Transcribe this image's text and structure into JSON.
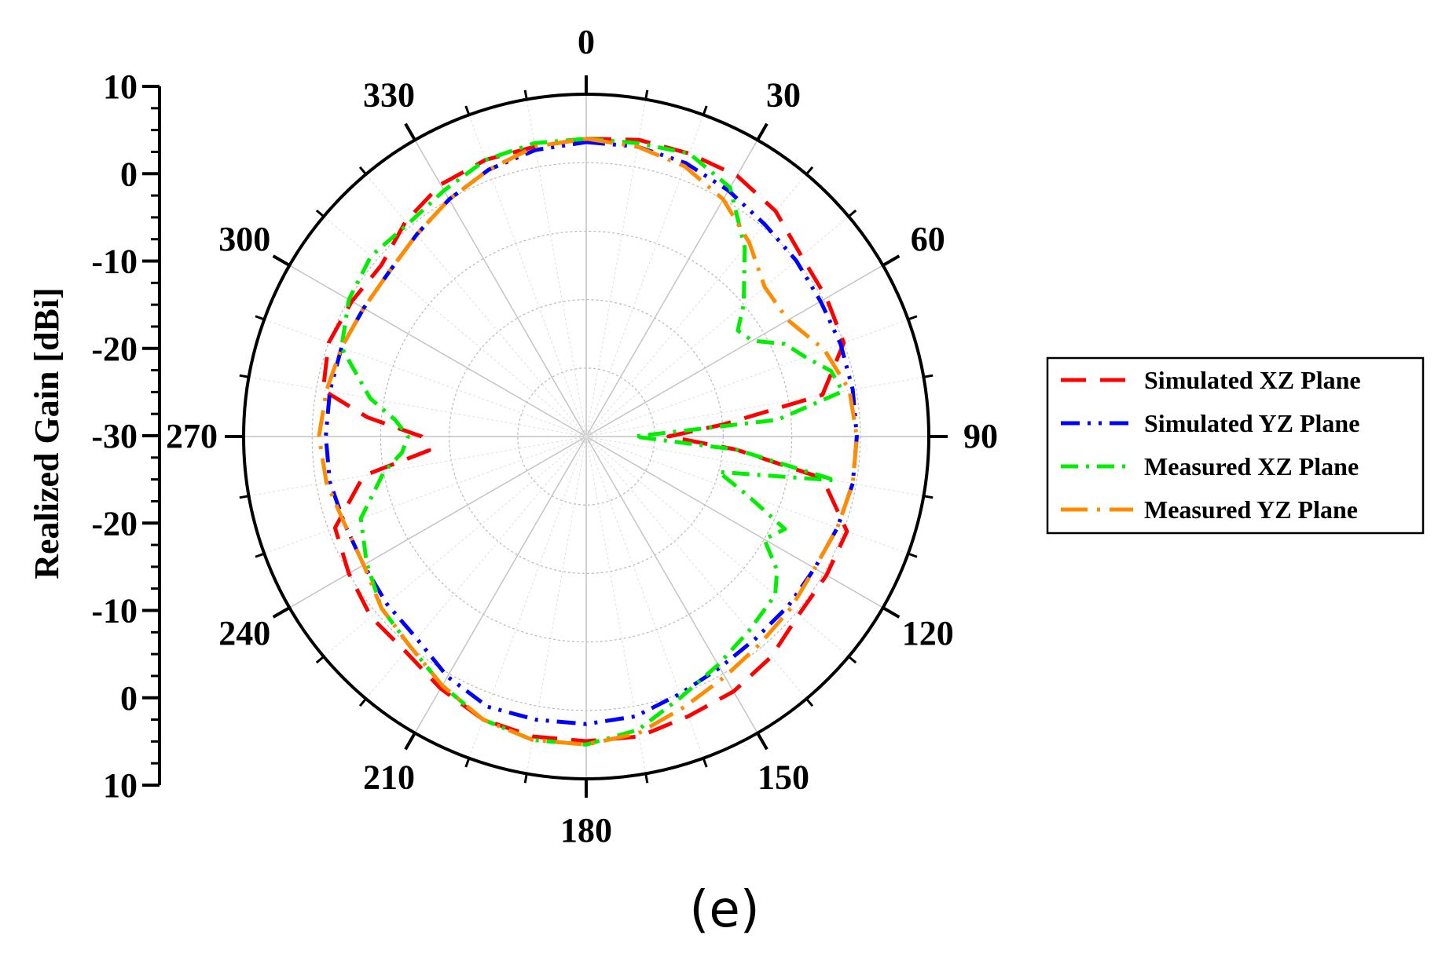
{
  "chart_data": {
    "type": "polar-line",
    "ylabel": "Realized Gain [dBi]",
    "radial_range": [
      -40,
      10
    ],
    "radial_ticks": [
      "10",
      "0",
      "-10",
      "-20",
      "-30",
      "-20",
      "-10",
      "0",
      "10"
    ],
    "angle_labels": [
      "0",
      "30",
      "60",
      "90",
      "120",
      "150",
      "180",
      "210",
      "240",
      "270",
      "300",
      "330"
    ],
    "grid": true,
    "legend_position": "right",
    "caption": "(e)",
    "series": [
      {
        "name": "Simulated XZ Plane",
        "color": "#ff0000",
        "angles": [
          0,
          10,
          20,
          30,
          40,
          50,
          60,
          70,
          80,
          85,
          90,
          95,
          100,
          110,
          120,
          130,
          140,
          150,
          160,
          170,
          180,
          190,
          200,
          210,
          220,
          230,
          240,
          250,
          260,
          265,
          270,
          275,
          280,
          290,
          300,
          310,
          320,
          330,
          340,
          350,
          360
        ],
        "gains": [
          3.5,
          4.0,
          4.0,
          4.0,
          3.0,
          1.0,
          0.5,
          0.0,
          -5.0,
          -20.0,
          -28.0,
          -18.0,
          -5.0,
          0.5,
          0.5,
          0.5,
          2.0,
          3.0,
          3.5,
          4.5,
          4.5,
          4.5,
          4.0,
          2.5,
          1.0,
          1.0,
          0.0,
          -1.0,
          -7.0,
          -17.0,
          -16.0,
          -8.0,
          -1.0,
          0.0,
          -0.5,
          -1.0,
          1.0,
          2.5,
          3.0,
          3.0,
          3.5
        ]
      },
      {
        "name": "Simulated YZ Plane",
        "color": "#0000ff",
        "angles": [
          0,
          10,
          20,
          30,
          40,
          50,
          60,
          70,
          80,
          90,
          100,
          110,
          120,
          130,
          140,
          150,
          160,
          170,
          180,
          190,
          200,
          210,
          220,
          230,
          240,
          250,
          260,
          270,
          280,
          290,
          300,
          310,
          320,
          330,
          340,
          350,
          360
        ],
        "gains": [
          3.0,
          3.0,
          2.5,
          1.5,
          0.5,
          0.0,
          -0.5,
          -0.5,
          -0.5,
          -0.5,
          -0.5,
          -1.0,
          -1.5,
          -1.5,
          -1.5,
          -1.0,
          0.0,
          1.5,
          2.0,
          2.0,
          2.0,
          0.5,
          -1.5,
          -2.0,
          -2.5,
          -2.5,
          -2.0,
          -2.0,
          -2.0,
          -2.0,
          -2.5,
          -2.5,
          -1.5,
          0.0,
          1.5,
          2.5,
          3.0
        ]
      },
      {
        "name": "Measured XZ Plane",
        "color": "#00ee00",
        "angles": [
          0,
          10,
          20,
          30,
          40,
          50,
          55,
          60,
          65,
          70,
          75,
          80,
          85,
          90,
          95,
          100,
          105,
          110,
          115,
          120,
          125,
          130,
          140,
          150,
          160,
          170,
          180,
          190,
          200,
          210,
          220,
          230,
          240,
          250,
          260,
          265,
          270,
          275,
          280,
          290,
          300,
          310,
          320,
          330,
          340,
          350,
          360
        ],
        "gains": [
          3.5,
          3.5,
          4.0,
          2.0,
          -4.0,
          -10.0,
          -13.0,
          -12.0,
          -8.0,
          -6.0,
          -3.0,
          -2.0,
          -12.0,
          -33.0,
          -18.0,
          -3.0,
          -20.0,
          -15.0,
          -8.0,
          -10.0,
          -6.0,
          -4.0,
          -3.0,
          -1.5,
          0.5,
          3.5,
          5.0,
          5.0,
          4.0,
          2.0,
          0.0,
          -1.0,
          -3.0,
          -5.0,
          -10.0,
          -13.0,
          -14.0,
          -12.0,
          -8.0,
          -2.0,
          0.0,
          1.0,
          0.5,
          1.5,
          3.0,
          3.5,
          3.5
        ]
      },
      {
        "name": "Measured YZ Plane",
        "color": "#ff8c00",
        "angles": [
          0,
          10,
          20,
          30,
          40,
          50,
          60,
          70,
          80,
          90,
          100,
          110,
          120,
          130,
          140,
          150,
          160,
          170,
          180,
          190,
          200,
          210,
          220,
          230,
          240,
          250,
          260,
          270,
          280,
          290,
          300,
          310,
          320,
          330,
          340,
          350,
          360
        ],
        "gains": [
          3.5,
          3.0,
          2.0,
          0.0,
          -3.0,
          -6.0,
          -6.0,
          -3.0,
          -1.0,
          -0.5,
          -0.5,
          -1.0,
          -1.5,
          -1.0,
          -0.5,
          0.5,
          2.0,
          4.0,
          5.0,
          5.0,
          4.0,
          2.0,
          0.0,
          -1.0,
          -2.5,
          -2.5,
          -1.5,
          -1.0,
          -1.5,
          -2.0,
          -2.5,
          -2.5,
          -1.5,
          0.0,
          1.5,
          3.0,
          3.5
        ]
      }
    ]
  }
}
